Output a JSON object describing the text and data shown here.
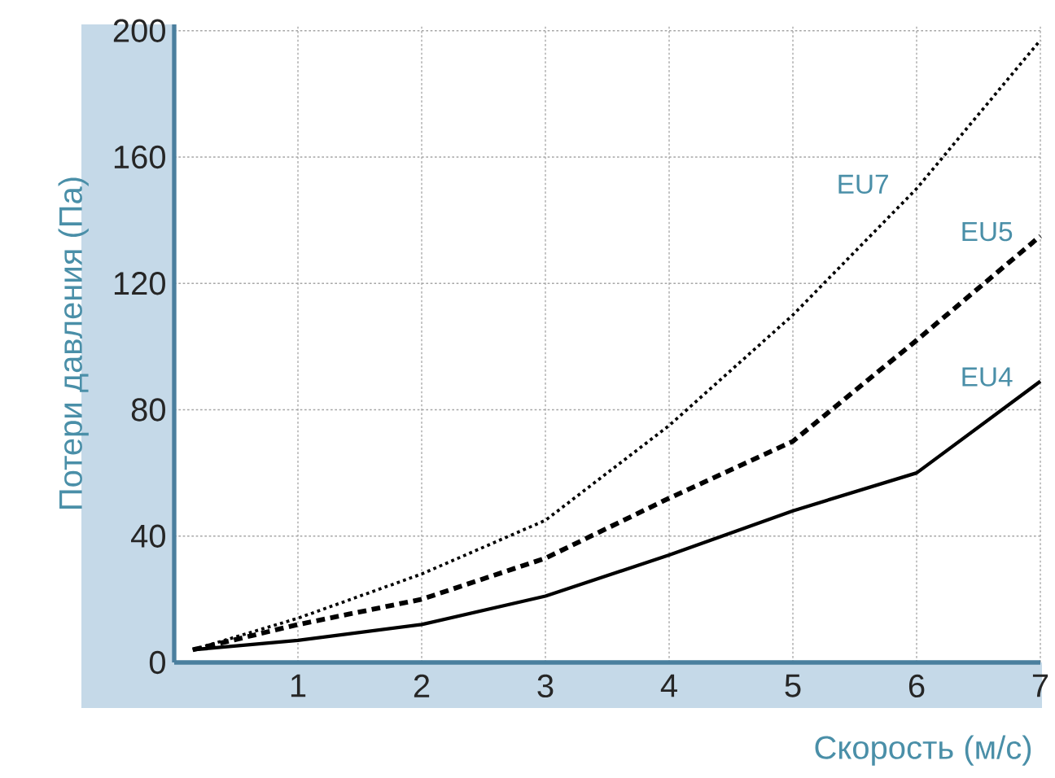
{
  "chart_data": {
    "type": "line",
    "xlabel": "Скорость (м/с)",
    "ylabel": "Потери давления (Па)",
    "xlim": [
      0,
      7
    ],
    "ylim": [
      0,
      202
    ],
    "xticks": [
      1,
      2,
      3,
      4,
      5,
      6,
      7
    ],
    "yticks": [
      0,
      40,
      80,
      120,
      160,
      200
    ],
    "grid": true,
    "marker": "none",
    "series": [
      {
        "name": "EU4",
        "color": "#000000",
        "line_style": "solid",
        "x": [
          0.15,
          1,
          2,
          3,
          4,
          5,
          6,
          7
        ],
        "values": [
          4,
          7,
          12,
          21,
          34,
          48,
          60,
          89
        ]
      },
      {
        "name": "EU5",
        "color": "#000000",
        "line_style": "dashed",
        "x": [
          0.15,
          1,
          2,
          3,
          4,
          5,
          6,
          7
        ],
        "values": [
          4,
          12,
          20,
          33,
          52,
          70,
          102,
          135
        ]
      },
      {
        "name": "EU7",
        "color": "#000000",
        "line_style": "dotted",
        "x": [
          0.15,
          1,
          2,
          3,
          4,
          5,
          6,
          7
        ],
        "values": [
          4,
          14,
          28,
          45,
          75,
          110,
          150,
          197
        ]
      }
    ]
  }
}
